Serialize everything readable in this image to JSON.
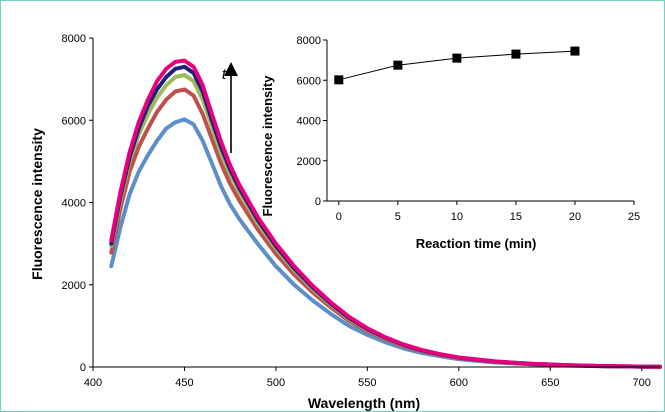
{
  "chart_data": [
    {
      "type": "line",
      "xlabel": "Wavelength (nm)",
      "ylabel": "Fluorescence intensity",
      "xlim": [
        400,
        710
      ],
      "ylim": [
        0,
        8000
      ],
      "xticks": [
        400,
        450,
        500,
        550,
        600,
        650,
        700
      ],
      "yticks": [
        0,
        2000,
        4000,
        6000,
        8000
      ],
      "annotation": {
        "label": "t",
        "meaning_arrow": "up"
      },
      "series": [
        {
          "color": "#5b8fc8",
          "x": [
            410,
            415,
            420,
            425,
            430,
            435,
            440,
            445,
            450,
            455,
            460,
            465,
            470,
            475,
            480,
            490,
            500,
            510,
            520,
            530,
            540,
            550,
            560,
            570,
            580,
            590,
            600,
            620,
            640,
            660,
            680,
            700,
            710
          ],
          "y": [
            2450,
            3400,
            4200,
            4750,
            5150,
            5500,
            5800,
            5950,
            6020,
            5900,
            5500,
            4950,
            4400,
            3950,
            3600,
            3000,
            2450,
            2000,
            1620,
            1290,
            1000,
            780,
            600,
            450,
            340,
            260,
            190,
            110,
            65,
            35,
            18,
            8,
            5
          ]
        },
        {
          "color": "#c0504d",
          "x": [
            410,
            415,
            420,
            425,
            430,
            435,
            440,
            445,
            450,
            455,
            460,
            465,
            470,
            475,
            480,
            490,
            500,
            510,
            520,
            530,
            540,
            550,
            560,
            570,
            580,
            590,
            600,
            620,
            640,
            660,
            680,
            700,
            710
          ],
          "y": [
            2780,
            3850,
            4750,
            5350,
            5800,
            6200,
            6500,
            6700,
            6750,
            6600,
            6150,
            5550,
            4950,
            4450,
            4050,
            3350,
            2750,
            2250,
            1820,
            1450,
            1120,
            870,
            670,
            500,
            380,
            290,
            215,
            125,
            72,
            40,
            20,
            9,
            5
          ]
        },
        {
          "color": "#9bbb59",
          "x": [
            410,
            415,
            420,
            425,
            430,
            435,
            440,
            445,
            450,
            455,
            460,
            465,
            470,
            475,
            480,
            490,
            500,
            510,
            520,
            530,
            540,
            550,
            560,
            570,
            580,
            590,
            600,
            620,
            640,
            660,
            680,
            700,
            710
          ],
          "y": [
            2950,
            4050,
            5000,
            5650,
            6150,
            6550,
            6850,
            7050,
            7100,
            6950,
            6500,
            5850,
            5200,
            4680,
            4250,
            3500,
            2880,
            2350,
            1900,
            1510,
            1170,
            900,
            690,
            520,
            395,
            300,
            222,
            130,
            75,
            42,
            21,
            10,
            5
          ]
        },
        {
          "color": "#1f1f7a",
          "x": [
            410,
            415,
            420,
            425,
            430,
            435,
            440,
            445,
            450,
            455,
            460,
            465,
            470,
            475,
            480,
            490,
            500,
            510,
            520,
            530,
            540,
            550,
            560,
            570,
            580,
            590,
            600,
            620,
            640,
            660,
            680,
            700,
            710
          ],
          "y": [
            3000,
            4150,
            5100,
            5800,
            6350,
            6750,
            7050,
            7250,
            7300,
            7150,
            6700,
            6000,
            5350,
            4800,
            4350,
            3580,
            2940,
            2400,
            1940,
            1540,
            1190,
            920,
            705,
            530,
            400,
            305,
            226,
            132,
            76,
            43,
            22,
            10,
            5
          ]
        },
        {
          "color": "#e6007e",
          "x": [
            410,
            415,
            420,
            425,
            430,
            435,
            440,
            445,
            450,
            455,
            460,
            465,
            470,
            475,
            480,
            490,
            500,
            510,
            520,
            530,
            540,
            550,
            560,
            570,
            580,
            590,
            600,
            620,
            640,
            660,
            680,
            700,
            710
          ],
          "y": [
            3080,
            4250,
            5220,
            5950,
            6500,
            6950,
            7250,
            7420,
            7450,
            7300,
            6850,
            6150,
            5480,
            4900,
            4430,
            3650,
            3000,
            2450,
            1980,
            1570,
            1220,
            940,
            720,
            545,
            410,
            312,
            232,
            135,
            78,
            44,
            22,
            10,
            5
          ]
        }
      ]
    },
    {
      "type": "scatter",
      "xlabel": "Reaction time (min)",
      "ylabel": "Fluorescence intensity",
      "xlim": [
        -1,
        25
      ],
      "ylim": [
        0,
        8000
      ],
      "xticks": [
        0,
        5,
        10,
        15,
        20,
        25
      ],
      "yticks": [
        0,
        2000,
        4000,
        6000,
        8000
      ],
      "series": [
        {
          "color": "#000000",
          "x": [
            0,
            5,
            10,
            15,
            20
          ],
          "y": [
            6020,
            6750,
            7100,
            7300,
            7450
          ]
        }
      ]
    }
  ]
}
